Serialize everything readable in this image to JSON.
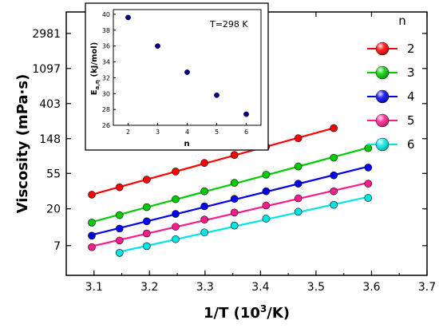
{
  "chart_data": [
    {
      "type": "line",
      "xlabel": "1/T (10",
      "xlabel_sup": "3",
      "xlabel_tail": "/K)",
      "ylabel": "Viscosity (mPa·s)",
      "xlim": [
        3.05,
        3.7
      ],
      "ylim": [
        3.0,
        5500
      ],
      "yscale": "log",
      "x_ticks": [
        3.1,
        3.2,
        3.3,
        3.4,
        3.5,
        3.6,
        3.7
      ],
      "y_ticks": [
        7,
        20,
        55,
        148,
        403,
        1097,
        2981
      ],
      "legend_title": "n",
      "legend_position": "right",
      "series": [
        {
          "name": "2",
          "color": "#ff0000",
          "x": [
            3.096,
            3.146,
            3.195,
            3.247,
            3.299,
            3.353,
            3.41,
            3.468,
            3.532
          ],
          "y": [
            30,
            37,
            46,
            58,
            74,
            93,
            118,
            150,
            200
          ]
        },
        {
          "name": "3",
          "color": "#00cc00",
          "x": [
            3.096,
            3.146,
            3.195,
            3.247,
            3.299,
            3.353,
            3.41,
            3.468,
            3.532,
            3.594
          ],
          "y": [
            13.5,
            16.7,
            21,
            26.3,
            33,
            42,
            53,
            67,
            86,
            113
          ]
        },
        {
          "name": "4",
          "color": "#0000ee",
          "x": [
            3.096,
            3.146,
            3.195,
            3.247,
            3.299,
            3.353,
            3.41,
            3.468,
            3.532,
            3.594
          ],
          "y": [
            9.3,
            11.4,
            14,
            17.3,
            21.5,
            26.6,
            33,
            41,
            52,
            65
          ]
        },
        {
          "name": "5",
          "color": "#ff1b8d",
          "x": [
            3.096,
            3.146,
            3.195,
            3.247,
            3.299,
            3.353,
            3.41,
            3.468,
            3.532,
            3.594
          ],
          "y": [
            6.7,
            8.1,
            9.9,
            12,
            14.7,
            18,
            22,
            27,
            33,
            41
          ]
        },
        {
          "name": "6",
          "color": "#00e5e5",
          "x": [
            3.146,
            3.195,
            3.247,
            3.299,
            3.353,
            3.41,
            3.468,
            3.532,
            3.594
          ],
          "y": [
            5.7,
            6.9,
            8.4,
            10.2,
            12.4,
            15.1,
            18.4,
            22.4,
            27.3
          ]
        }
      ]
    },
    {
      "type": "scatter",
      "xlabel": "n",
      "ylabel_main": "E",
      "ylabel_sub": "a,η",
      "ylabel_tail": " (kJ/mol)",
      "annotation": "T=298 K",
      "xlim": [
        1.5,
        6.5
      ],
      "ylim": [
        26,
        40.6
      ],
      "x_ticks": [
        2,
        3,
        4,
        5,
        6
      ],
      "y_ticks": [
        26,
        28,
        30,
        32,
        34,
        36,
        38,
        40
      ],
      "series": [
        {
          "color": "#00008b",
          "x": [
            2,
            3,
            4,
            5,
            6
          ],
          "y": [
            39.6,
            36.0,
            32.7,
            29.8,
            27.4
          ]
        }
      ]
    }
  ]
}
